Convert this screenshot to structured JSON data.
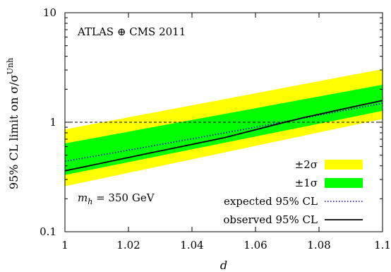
{
  "chart_data": {
    "type": "line",
    "annotation": "ATLAS ⊕ CMS 2011",
    "mass_annotation": {
      "symbol": "m",
      "subscript": "h",
      "rest": " = 350 GeV"
    },
    "xlabel": "d",
    "ylabel": {
      "prefix": "95% CL limit on σ/σ",
      "superscript": "Unh"
    },
    "xlim": [
      1.0,
      1.1
    ],
    "ylim": [
      0.1,
      10
    ],
    "yscale": "log",
    "x_ticks": [
      {
        "value": 1.0,
        "label": "1"
      },
      {
        "value": 1.02,
        "label": "1.02"
      },
      {
        "value": 1.04,
        "label": "1.04"
      },
      {
        "value": 1.06,
        "label": "1.06"
      },
      {
        "value": 1.08,
        "label": "1.08"
      },
      {
        "value": 1.1,
        "label": "1.1"
      }
    ],
    "y_ticks": [
      {
        "value": 0.1,
        "label": "0.1"
      },
      {
        "value": 1,
        "label": "1"
      },
      {
        "value": 10,
        "label": "10"
      }
    ],
    "reference_line": {
      "y": 1,
      "style": "dashed"
    },
    "bands": [
      {
        "name": "±2σ",
        "color": "#ffff00",
        "x": [
          1.0,
          1.1
        ],
        "lower": [
          0.26,
          1.07
        ],
        "upper": [
          0.86,
          3.05
        ]
      },
      {
        "name": "±1σ",
        "color": "#00ff00",
        "x": [
          1.0,
          1.1
        ],
        "lower": [
          0.33,
          1.27
        ],
        "upper": [
          0.64,
          2.2
        ]
      }
    ],
    "series": [
      {
        "name": "expected 95% CL",
        "style": "dotted",
        "color": "#0000cc",
        "x": [
          1.0,
          1.02,
          1.04,
          1.06,
          1.08,
          1.1
        ],
        "y": [
          0.44,
          0.555,
          0.705,
          0.9,
          1.16,
          1.49
        ]
      },
      {
        "name": "observed 95% CL",
        "style": "solid",
        "color": "#000000",
        "x": [
          1.0,
          1.025,
          1.05,
          1.065,
          1.075,
          1.1
        ],
        "y": [
          0.36,
          0.51,
          0.72,
          0.93,
          1.1,
          1.58
        ]
      }
    ],
    "legend": {
      "placement": "bottom-right",
      "entries": [
        {
          "label": "±2σ",
          "kind": "band",
          "color": "#ffff00"
        },
        {
          "label": "±1σ",
          "kind": "band",
          "color": "#00ff00"
        },
        {
          "label": "expected 95% CL",
          "kind": "line",
          "style": "dotted",
          "color": "#0000cc"
        },
        {
          "label": "observed 95% CL",
          "kind": "line",
          "style": "solid",
          "color": "#000000"
        }
      ]
    }
  }
}
